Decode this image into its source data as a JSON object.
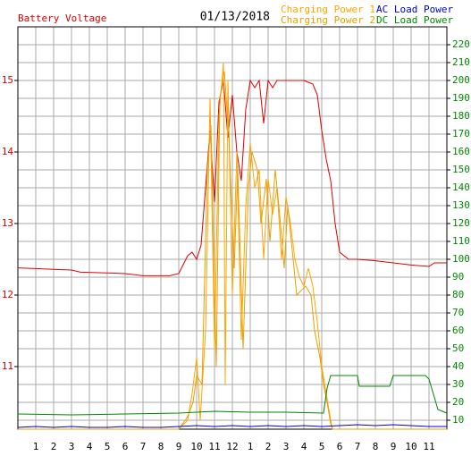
{
  "chart_data": {
    "type": "line",
    "title": "01/13/2018",
    "xlim": [
      0,
      24
    ],
    "xticks": [
      1,
      2,
      3,
      4,
      5,
      6,
      7,
      8,
      9,
      10,
      11,
      12,
      {
        "value": 13,
        "label": "1"
      },
      {
        "value": 14,
        "label": "2"
      },
      {
        "value": 15,
        "label": "3"
      },
      {
        "value": 16,
        "label": "4"
      },
      {
        "value": 17,
        "label": "5"
      },
      {
        "value": 18,
        "label": "6"
      },
      {
        "value": 19,
        "label": "7"
      },
      {
        "value": 20,
        "label": "8"
      },
      {
        "value": 21,
        "label": "9"
      },
      {
        "value": 22,
        "label": "10"
      },
      {
        "value": 23,
        "label": "11"
      }
    ],
    "ylim": [
      10.125,
      15.75
    ],
    "yticks": [
      11,
      12,
      13,
      14,
      15
    ],
    "y2lim": [
      5,
      230
    ],
    "y2ticks": [
      10,
      20,
      30,
      40,
      50,
      60,
      70,
      80,
      90,
      100,
      110,
      120,
      130,
      140,
      150,
      160,
      170,
      180,
      190,
      200,
      210,
      220
    ],
    "grid": true,
    "series": [
      {
        "name": "Battery Voltage",
        "color": "#dd0000",
        "axis": "y",
        "x": [
          0,
          1,
          2,
          3,
          3.5,
          5,
          6,
          7,
          8.5,
          9,
          9.5,
          9.75,
          10,
          10.25,
          10.5,
          10.75,
          11,
          11.25,
          11.5,
          11.75,
          12,
          12.25,
          12.5,
          12.75,
          13,
          13.25,
          13.5,
          13.75,
          14,
          14.25,
          14.5,
          15,
          16,
          16.5,
          16.75,
          17,
          17.25,
          17.5,
          17.75,
          18,
          18.5,
          19,
          20,
          21,
          22,
          23,
          23.3,
          24
        ],
        "values": [
          12.38,
          12.37,
          12.36,
          12.35,
          12.32,
          12.31,
          12.3,
          12.27,
          12.27,
          12.3,
          12.55,
          12.6,
          12.5,
          12.7,
          13.5,
          14.3,
          13.3,
          14.7,
          15.0,
          14.2,
          14.8,
          14.0,
          13.6,
          14.6,
          15.0,
          14.9,
          15.0,
          14.4,
          15.0,
          14.9,
          15.0,
          15.0,
          15.0,
          14.95,
          14.8,
          14.3,
          13.9,
          13.6,
          13.0,
          12.6,
          12.5,
          12.5,
          12.48,
          12.45,
          12.42,
          12.4,
          12.45,
          12.45
        ]
      },
      {
        "name": "Charging Power 1",
        "color": "#ffa500",
        "axis": "y2",
        "x": [
          0,
          9,
          9.5,
          9.75,
          10,
          10.2,
          10.5,
          10.75,
          11,
          11.25,
          11.5,
          11.6,
          11.75,
          12,
          12.25,
          12.5,
          12.75,
          13,
          13.25,
          13.5,
          13.75,
          14,
          14.25,
          14.5,
          14.75,
          15,
          15.25,
          15.5,
          15.75,
          16,
          16.25,
          16.5,
          16.75,
          17,
          17.25,
          17.5,
          17.6,
          24
        ],
        "values": [
          5,
          5,
          10,
          25,
          45,
          10,
          60,
          190,
          50,
          180,
          210,
          30,
          200,
          80,
          160,
          55,
          130,
          165,
          140,
          150,
          100,
          145,
          125,
          140,
          100,
          135,
          120,
          100,
          90,
          85,
          95,
          85,
          65,
          40,
          25,
          10,
          5,
          5
        ]
      },
      {
        "name": "Charging Power 2",
        "color": "#e8a000",
        "axis": "y2",
        "x": [
          0,
          9,
          9.5,
          9.8,
          10,
          10.3,
          10.6,
          10.8,
          11.1,
          11.3,
          11.55,
          11.8,
          12.1,
          12.3,
          12.6,
          12.9,
          13.1,
          13.4,
          13.6,
          13.9,
          14.1,
          14.4,
          14.6,
          14.9,
          15.1,
          15.4,
          15.6,
          16.1,
          16.4,
          16.6,
          16.9,
          17.1,
          17.3,
          17.5,
          17.6,
          24
        ],
        "values": [
          5,
          5,
          12,
          20,
          35,
          30,
          150,
          175,
          40,
          190,
          205,
          170,
          95,
          150,
          50,
          140,
          160,
          150,
          120,
          145,
          110,
          150,
          130,
          95,
          130,
          100,
          80,
          85,
          80,
          60,
          45,
          30,
          20,
          8,
          5,
          5
        ]
      },
      {
        "name": "AC Load Power",
        "color": "#0000cc",
        "axis": "y2",
        "x": [
          0,
          1,
          2,
          3,
          4,
          5,
          6,
          7,
          8,
          9,
          10,
          11,
          12,
          13,
          14,
          15,
          16,
          17,
          18,
          19,
          20,
          21,
          22,
          23,
          24
        ],
        "values": [
          6,
          6.5,
          6,
          6.5,
          6,
          6,
          6.5,
          6,
          6,
          6.5,
          7,
          6.5,
          7,
          6.5,
          7,
          6.5,
          7,
          6.5,
          7,
          7.5,
          7,
          7.5,
          7,
          6.5,
          6.5
        ]
      },
      {
        "name": "DC Load Power",
        "color": "#008800",
        "axis": "y2",
        "x": [
          0,
          3,
          6,
          9,
          11,
          13,
          15,
          17.1,
          17.3,
          17.5,
          19,
          19.1,
          20.8,
          21,
          22.8,
          23,
          23.5,
          24
        ],
        "values": [
          13.5,
          13,
          13.5,
          14,
          15,
          14.5,
          14.5,
          14,
          28,
          35,
          35,
          29,
          29,
          35,
          35,
          33,
          16,
          14
        ]
      }
    ]
  }
}
